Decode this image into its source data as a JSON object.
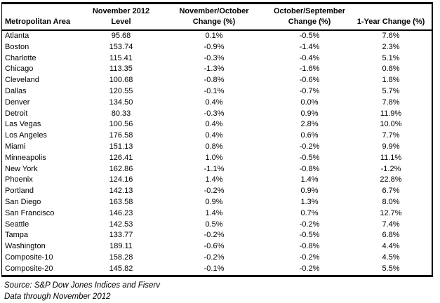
{
  "colors": {
    "background": "#ffffff",
    "text": "#000000",
    "border": "#000000"
  },
  "chart_data": {
    "type": "table",
    "title": "",
    "columns": [
      {
        "line1": "",
        "line2": "Metropolitan Area",
        "align": "left"
      },
      {
        "line1": "November 2012",
        "line2": "Level",
        "align": "center"
      },
      {
        "line1": "November/October",
        "line2": "Change (%)",
        "align": "center"
      },
      {
        "line1": "October/September",
        "line2": "Change (%)",
        "align": "center"
      },
      {
        "line1": "",
        "line2": "1-Year Change (%)",
        "align": "center"
      }
    ],
    "rows": [
      [
        "Atlanta",
        "95.68",
        "0.1%",
        "-0.5%",
        "7.6%"
      ],
      [
        "Boston",
        "153.74",
        "-0.9%",
        "-1.4%",
        "2.3%"
      ],
      [
        "Charlotte",
        "115.41",
        "-0.3%",
        "-0.4%",
        "5.1%"
      ],
      [
        "Chicago",
        "113.35",
        "-1.3%",
        "-1.6%",
        "0.8%"
      ],
      [
        "Cleveland",
        "100.68",
        "-0.8%",
        "-0.6%",
        "1.8%"
      ],
      [
        "Dallas",
        "120.55",
        "-0.1%",
        "-0.7%",
        "5.7%"
      ],
      [
        "Denver",
        "134.50",
        "0.4%",
        "0.0%",
        "7.8%"
      ],
      [
        "Detroit",
        "80.33",
        "-0.3%",
        "0.9%",
        "11.9%"
      ],
      [
        "Las Vegas",
        "100.56",
        "0.4%",
        "2.8%",
        "10.0%"
      ],
      [
        "Los Angeles",
        "176.58",
        "0.4%",
        "0.6%",
        "7.7%"
      ],
      [
        "Miami",
        "151.13",
        "0.8%",
        "-0.2%",
        "9.9%"
      ],
      [
        "Minneapolis",
        "126.41",
        "1.0%",
        "-0.5%",
        "11.1%"
      ],
      [
        "New York",
        "162.86",
        "-1.1%",
        "-0.8%",
        "-1.2%"
      ],
      [
        "Phoenix",
        "124.16",
        "1.4%",
        "1.4%",
        "22.8%"
      ],
      [
        "Portland",
        "142.13",
        "-0.2%",
        "0.9%",
        "6.7%"
      ],
      [
        "San Diego",
        "163.58",
        "0.9%",
        "1.3%",
        "8.0%"
      ],
      [
        "San Francisco",
        "146.23",
        "1.4%",
        "0.7%",
        "12.7%"
      ],
      [
        "Seattle",
        "142.53",
        "0.5%",
        "-0.2%",
        "7.4%"
      ],
      [
        "Tampa",
        "133.77",
        "-0.2%",
        "-0.5%",
        "6.8%"
      ],
      [
        "Washington",
        "189.11",
        "-0.6%",
        "-0.8%",
        "4.4%"
      ],
      [
        "Composite-10",
        "158.28",
        "-0.2%",
        "-0.2%",
        "4.5%"
      ],
      [
        "Composite-20",
        "145.82",
        "-0.1%",
        "-0.2%",
        "5.5%"
      ]
    ],
    "footnotes": [
      "Source: S&P Dow Jones Indices and Fiserv",
      "Data through November 2012"
    ],
    "layout": {
      "grid": "no interior gridlines",
      "header_rule": "heavy",
      "outer_border": "heavy"
    }
  }
}
